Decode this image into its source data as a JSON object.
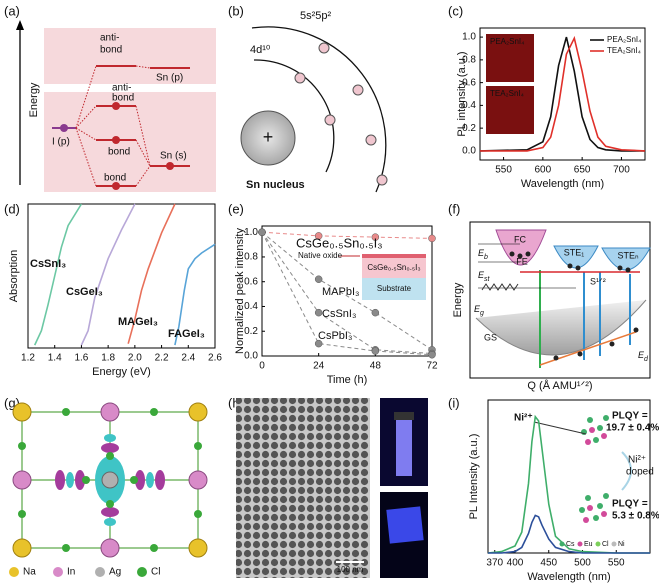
{
  "diagrams": {
    "a": {
      "label": "(a)",
      "axis": "Energy",
      "top_antibond": [
        "anti-",
        "bond"
      ],
      "sn_p": "Sn (p)",
      "antibond": [
        "anti-",
        "bond"
      ],
      "bond_mid": "bond",
      "bond_low": "bond",
      "i_p": "I (p)",
      "sn_s": "Sn (s)"
    },
    "b": {
      "label": "(b)",
      "outer": "5s²5p²",
      "inner": "4d¹⁰",
      "charge": "+",
      "nucleus": "Sn nucleus"
    },
    "f": {
      "label": "(f)",
      "fc": "FC",
      "fe": "FE",
      "ste1": "STE₁",
      "sten": "STEₙ",
      "gs": "GS",
      "eb": {
        "base": "E",
        "sub": "b"
      },
      "est": {
        "base": "E",
        "sub": "st"
      },
      "eg": {
        "base": "E",
        "sub": "g"
      },
      "ed": {
        "base": "E",
        "sub": "d"
      },
      "s": "S¹ᐟ²",
      "y_label": "Energy",
      "x_label": "Q (Å AMU¹ᐟ²)"
    },
    "g": {
      "label": "(g)",
      "legend": [
        "Na",
        "In",
        "Ag",
        "Cl"
      ]
    },
    "h": {
      "label": "(h)",
      "scale": "100 nm"
    }
  },
  "chart_data": [
    {
      "type": "line",
      "label": "(c)",
      "y_label": "PL intensity (a.u.)",
      "x_label": "Wavelength (nm)",
      "insets": [
        "PEA₂SnI₄",
        "TEA₂SnI₄"
      ],
      "x": [
        520,
        580,
        600,
        610,
        620,
        630,
        640,
        650,
        660,
        670,
        680,
        700,
        730
      ],
      "series": [
        {
          "name": "PEA₂SnI₄",
          "color": "#111111",
          "values": [
            0,
            0.01,
            0.08,
            0.3,
            0.75,
            1.0,
            0.7,
            0.3,
            0.1,
            0.03,
            0.01,
            0,
            0
          ]
        },
        {
          "name": "TEA₂SnI₄",
          "color": "#e0302a",
          "values": [
            0,
            0,
            0.03,
            0.12,
            0.4,
            0.85,
            0.99,
            0.7,
            0.35,
            0.12,
            0.04,
            0.01,
            0
          ]
        }
      ],
      "xlim": [
        520,
        730
      ],
      "xticks": [
        550,
        600,
        650,
        700
      ],
      "ylim": [
        -0.08,
        1.08
      ],
      "yticks": [
        {
          "value": 0,
          "label": "0.0"
        },
        0.2,
        0.4,
        0.6,
        0.8,
        {
          "value": 1,
          "label": "1.0"
        }
      ],
      "legend": "upper right"
    },
    {
      "type": "line",
      "label": "(d)",
      "y_label": "Absorption",
      "x_label": "Energy (eV)",
      "series": [
        {
          "name": "CsSnI₃",
          "color": "#6cc8a4",
          "x": [
            1.25,
            1.3,
            1.35,
            1.4,
            1.45,
            1.5,
            1.6
          ],
          "values": [
            0.02,
            0.12,
            0.3,
            0.5,
            0.7,
            0.85,
            1.0
          ]
        },
        {
          "name": "CsGeI₃",
          "color": "#b8a8d8",
          "x": [
            1.6,
            1.65,
            1.7,
            1.8,
            1.9,
            2.0
          ],
          "values": [
            0.02,
            0.12,
            0.35,
            0.62,
            0.82,
            1.0
          ]
        },
        {
          "name": "MAGeI₃",
          "color": "#e8705a",
          "x": [
            1.95,
            2.0,
            2.05,
            2.1,
            2.2,
            2.3
          ],
          "values": [
            0.03,
            0.2,
            0.4,
            0.55,
            0.8,
            1.0
          ]
        },
        {
          "name": "FAGeI₃",
          "color": "#58a4d8",
          "x": [
            2.3,
            2.33,
            2.37,
            2.4,
            2.45,
            2.5,
            2.6
          ],
          "values": [
            0.02,
            0.15,
            0.4,
            0.55,
            0.62,
            0.66,
            0.72
          ]
        }
      ],
      "xlim": [
        1.2,
        2.6
      ],
      "xticks": [
        1.2,
        1.4,
        1.6,
        1.8,
        {
          "value": 2,
          "label": "2.0"
        },
        2.2,
        2.4,
        2.6
      ],
      "ylim": [
        0,
        1
      ]
    },
    {
      "type": "line",
      "label": "(e)",
      "y_label": "Normalized peak intensity",
      "x_label": "Time (h)",
      "inset": {
        "oxide": "Native oxide",
        "film": "CsGe₀.₅Sn₀.₅I₃",
        "substrate": "Substrate"
      },
      "x": [
        0,
        24,
        48,
        72
      ],
      "series": [
        {
          "name": "CsGe₀.₅Sn₀.₅I₃",
          "color": "#e88a8a",
          "values": [
            1,
            0.97,
            0.96,
            0.95
          ]
        },
        {
          "name": "MAPbI₃",
          "color": "#8a8a8a",
          "values": [
            1,
            0.62,
            0.35,
            0.05
          ]
        },
        {
          "name": "CsSnI₃",
          "color": "#8a8a8a",
          "values": [
            1,
            0.35,
            0.05,
            0.02
          ]
        },
        {
          "name": "CsPbI₃",
          "color": "#8a8a8a",
          "values": [
            1,
            0.1,
            0.04,
            0.01
          ]
        }
      ],
      "xlim": [
        0,
        72
      ],
      "xticks": [
        0,
        24,
        48,
        72
      ],
      "ylim": [
        0,
        1.05
      ],
      "yticks": [
        {
          "value": 0,
          "label": "0.0"
        },
        0.2,
        0.4,
        0.6,
        0.8,
        {
          "value": 1,
          "label": "1.0"
        }
      ],
      "markers": true,
      "dashed": true
    },
    {
      "type": "line",
      "label": "(i)",
      "y_label": "PL Intensity (a.u.)",
      "x_label": "Wavelength (nm)",
      "annotations": {
        "ion": "Ni²⁺",
        "plqy_high": [
          "PLQY =",
          "19.7 ± 0.4%"
        ],
        "doped": [
          "Ni²⁺",
          "doped"
        ],
        "plqy_low": [
          "PLQY =",
          "5.3 ± 0.8%"
        ],
        "atoms": [
          "Cs",
          "Eu",
          "Cl",
          "Ni"
        ]
      },
      "x": [
        360,
        380,
        400,
        410,
        420,
        425,
        430,
        435,
        440,
        450,
        460,
        480,
        500,
        550,
        600
      ],
      "series": [
        {
          "color": "#3fae6a",
          "values": [
            0,
            0.01,
            0.05,
            0.15,
            0.5,
            0.8,
            0.98,
            0.95,
            0.75,
            0.35,
            0.12,
            0.03,
            0.01,
            0,
            0
          ]
        },
        {
          "color": "#2c4f9a",
          "values": [
            0,
            0,
            0.01,
            0.04,
            0.14,
            0.22,
            0.27,
            0.26,
            0.2,
            0.1,
            0.04,
            0.01,
            0,
            0,
            0
          ]
        }
      ],
      "xlim": [
        360,
        600
      ],
      "xticks": [
        370,
        400,
        450,
        500,
        550
      ],
      "ylim": [
        0,
        1.1
      ]
    }
  ]
}
